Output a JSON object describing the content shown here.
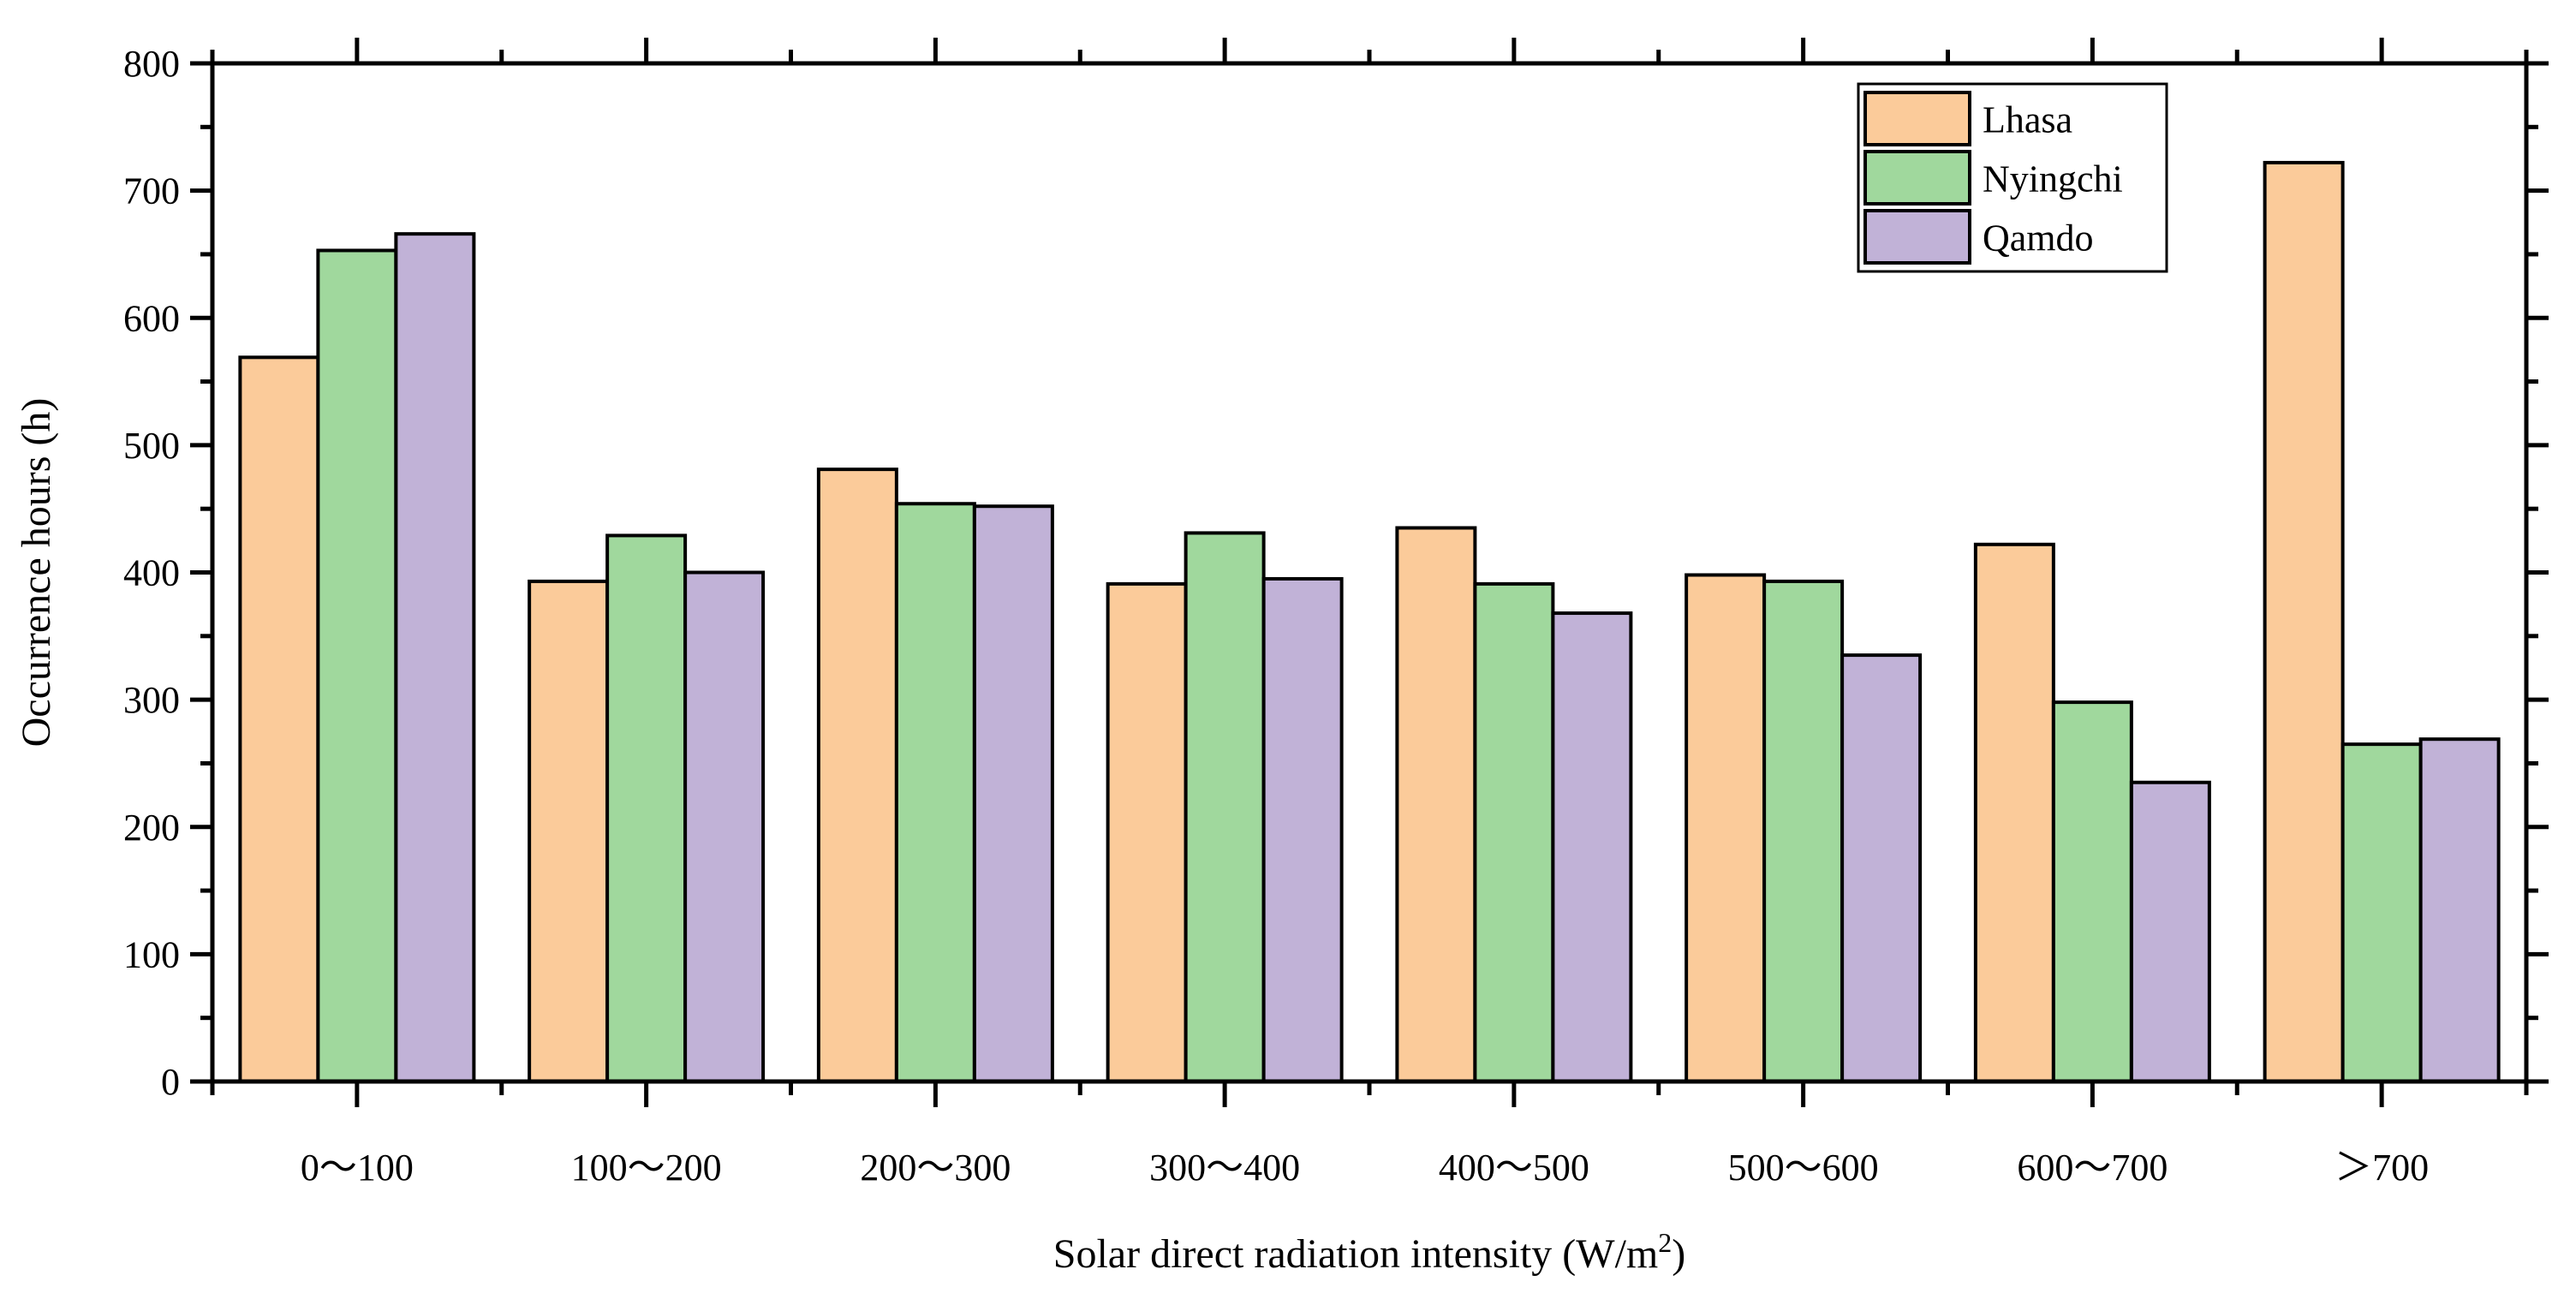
{
  "chart_data": {
    "type": "bar",
    "title": "",
    "xlabel": "Solar direct radiation intensity (W/m",
    "xlabel_sup": "2",
    "xlabel_close": ")",
    "ylabel": "Occurrence hours (h)",
    "ylim": [
      0,
      800
    ],
    "yticks": [
      "0",
      "100",
      "200",
      "300",
      "400",
      "500",
      "600",
      "700",
      "800"
    ],
    "categories": [
      "0～100",
      "100～200",
      "200～300",
      "300～400",
      "400～500",
      "500～600",
      "600～700",
      "＞700"
    ],
    "series": [
      {
        "name": "Lhasa",
        "color": "#fbcb9a",
        "values": [
          569,
          393,
          481,
          391,
          435,
          398,
          422,
          722
        ]
      },
      {
        "name": "Nyingchi",
        "color": "#a0d89d",
        "values": [
          653,
          429,
          454,
          431,
          391,
          393,
          298,
          265
        ]
      },
      {
        "name": "Qamdo",
        "color": "#c1b2d7",
        "values": [
          666,
          400,
          452,
          395,
          368,
          335,
          235,
          269
        ]
      }
    ],
    "legend_position": "top-right",
    "grid": false
  }
}
